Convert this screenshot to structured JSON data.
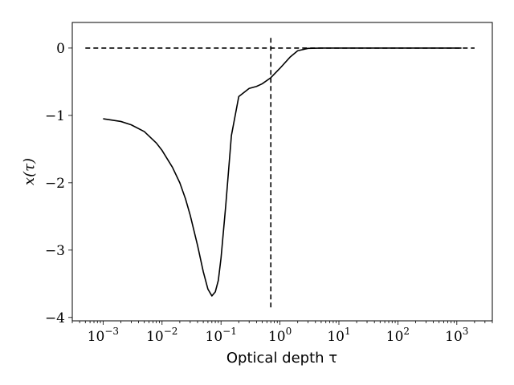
{
  "chart_data": {
    "type": "line",
    "title": "",
    "xlabel": "Optical depth τ",
    "ylabel": "x(τ)",
    "xscale": "log",
    "xlim": [
      0.0003,
      4000
    ],
    "ylim": [
      -4.05,
      0.38
    ],
    "grid": false,
    "x_ticks": [
      0.001,
      0.01,
      0.1,
      1,
      10,
      100,
      1000
    ],
    "x_tick_labels": [
      "10−3",
      "10−2",
      "10−1",
      "100",
      "101",
      "102",
      "103"
    ],
    "y_ticks": [
      0,
      -1,
      -2,
      -3,
      -4
    ],
    "y_tick_labels": [
      "0",
      "−1",
      "−2",
      "−3",
      "−4"
    ],
    "series": [
      {
        "name": "",
        "style": "solid",
        "color": "#000000",
        "x": [
          0.001,
          0.002,
          0.003,
          0.005,
          0.008,
          0.01,
          0.015,
          0.02,
          0.025,
          0.03,
          0.04,
          0.05,
          0.06,
          0.07,
          0.08,
          0.09,
          0.1,
          0.12,
          0.15,
          0.2,
          0.3,
          0.4,
          0.5,
          0.7,
          1,
          1.5,
          2,
          3,
          5,
          10,
          100,
          1000,
          1200
        ],
        "y": [
          -1.05,
          -1.09,
          -1.14,
          -1.24,
          -1.41,
          -1.52,
          -1.77,
          -2.0,
          -2.24,
          -2.48,
          -2.93,
          -3.32,
          -3.58,
          -3.68,
          -3.62,
          -3.45,
          -3.12,
          -2.35,
          -1.3,
          -0.72,
          -0.6,
          -0.57,
          -0.53,
          -0.44,
          -0.3,
          -0.13,
          -0.04,
          -0.005,
          0.0,
          0.0,
          0.0,
          0.0,
          0.0
        ]
      },
      {
        "name": "",
        "style": "dashed",
        "color": "#000000",
        "x": [
          0.0005,
          2000
        ],
        "y": [
          0,
          0
        ]
      },
      {
        "name": "",
        "style": "dashed",
        "color": "#000000",
        "x": [
          0.7,
          0.7
        ],
        "y": [
          -3.85,
          0.18
        ]
      }
    ]
  }
}
